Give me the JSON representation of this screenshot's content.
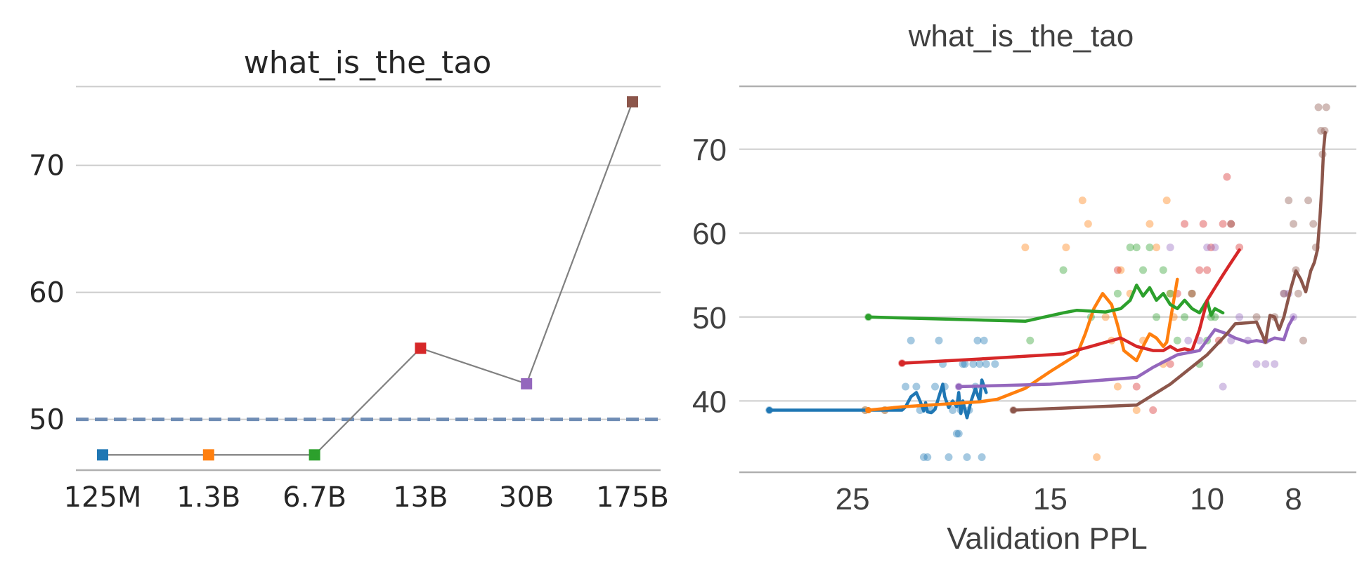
{
  "chart_data": [
    {
      "type": "line",
      "title": "what_is_the_tao",
      "xlabel": "",
      "ylabel": "",
      "categories": [
        "125M",
        "1.3B",
        "6.7B",
        "13B",
        "30B",
        "175B"
      ],
      "values": [
        47.2,
        47.2,
        47.2,
        55.6,
        52.8,
        75.0
      ],
      "marker_colors": [
        "#1f77b4",
        "#ff7f0e",
        "#2ca02c",
        "#d62728",
        "#9467bd",
        "#8c564b"
      ],
      "line_color": "#808080",
      "baseline": 50,
      "baseline_color": "#6f8db5",
      "yticks": [
        50,
        60,
        70
      ],
      "ylim": [
        46,
        76.5
      ],
      "grid": true
    },
    {
      "type": "line",
      "title": "what_is_the_tao",
      "xlabel": "Validation PPL",
      "ylabel": "",
      "x_scale": "log_reversed",
      "xticks": [
        25,
        15,
        10,
        8
      ],
      "xlim": [
        33.5,
        6.8
      ],
      "yticks": [
        40,
        50,
        60,
        70
      ],
      "ylim": [
        31.5,
        77.5
      ],
      "grid": true,
      "series": [
        {
          "color": "#1f77b4",
          "line": [
            [
              31.0,
              38.9
            ],
            [
              28.0,
              38.9
            ],
            [
              25.0,
              38.9
            ],
            [
              23.5,
              38.9
            ],
            [
              22.0,
              38.9
            ],
            [
              21.8,
              39.3
            ],
            [
              21.5,
              40.5
            ],
            [
              21.2,
              41.0
            ],
            [
              21.0,
              40.0
            ],
            [
              20.8,
              38.8
            ],
            [
              20.7,
              39.8
            ],
            [
              20.6,
              38.7
            ],
            [
              20.4,
              38.6
            ],
            [
              20.2,
              39.0
            ],
            [
              20.0,
              40.5
            ],
            [
              19.8,
              42.0
            ],
            [
              19.7,
              40.5
            ],
            [
              19.5,
              39.2
            ],
            [
              19.3,
              40.0
            ],
            [
              19.1,
              39.3
            ],
            [
              19.0,
              41.0
            ],
            [
              18.9,
              38.5
            ],
            [
              18.8,
              40.0
            ],
            [
              18.6,
              38.0
            ],
            [
              18.4,
              40.0
            ],
            [
              18.2,
              41.5
            ],
            [
              18.0,
              40.0
            ],
            [
              17.9,
              42.5
            ],
            [
              17.7,
              41.0
            ]
          ],
          "points": [
            [
              31.0,
              38.9
            ],
            [
              24.2,
              38.9
            ],
            [
              23.0,
              38.9
            ],
            [
              21.8,
              41.7
            ],
            [
              21.5,
              47.2
            ],
            [
              21.2,
              41.7
            ],
            [
              21.0,
              38.9
            ],
            [
              20.8,
              33.3
            ],
            [
              20.6,
              33.3
            ],
            [
              20.4,
              38.9
            ],
            [
              20.2,
              41.7
            ],
            [
              20.0,
              47.2
            ],
            [
              19.8,
              44.4
            ],
            [
              19.7,
              41.7
            ],
            [
              19.5,
              33.3
            ],
            [
              19.3,
              38.9
            ],
            [
              19.1,
              36.1
            ],
            [
              19.0,
              36.1
            ],
            [
              18.9,
              38.9
            ],
            [
              18.8,
              44.4
            ],
            [
              18.7,
              44.4
            ],
            [
              18.6,
              33.3
            ],
            [
              18.5,
              38.9
            ],
            [
              18.3,
              44.4
            ],
            [
              18.2,
              41.7
            ],
            [
              18.1,
              47.2
            ],
            [
              18.0,
              44.4
            ],
            [
              17.9,
              33.3
            ],
            [
              17.8,
              47.2
            ],
            [
              17.7,
              44.4
            ],
            [
              17.3,
              44.4
            ]
          ]
        },
        {
          "color": "#ff7f0e",
          "line": [
            [
              24.0,
              38.9
            ],
            [
              22.0,
              39.3
            ],
            [
              18.0,
              39.9
            ],
            [
              17.2,
              40.2
            ],
            [
              16.0,
              41.5
            ],
            [
              15.0,
              43.5
            ],
            [
              14.0,
              45.5
            ],
            [
              13.7,
              48.0
            ],
            [
              13.4,
              51.0
            ],
            [
              13.1,
              52.8
            ],
            [
              12.8,
              51.5
            ],
            [
              12.6,
              49.0
            ],
            [
              12.4,
              46.0
            ],
            [
              12.0,
              44.8
            ],
            [
              11.8,
              46.5
            ],
            [
              11.6,
              48.0
            ],
            [
              11.4,
              47.5
            ],
            [
              11.2,
              46.5
            ],
            [
              11.1,
              47.0
            ],
            [
              11.0,
              49.5
            ],
            [
              10.9,
              52.0
            ],
            [
              10.8,
              54.5
            ]
          ],
          "points": [
            [
              24.2,
              38.9
            ],
            [
              23.0,
              38.9
            ],
            [
              16.0,
              58.3
            ],
            [
              14.4,
              58.3
            ],
            [
              13.8,
              63.9
            ],
            [
              13.6,
              61.1
            ],
            [
              13.3,
              33.3
            ],
            [
              13.0,
              50.0
            ],
            [
              12.8,
              47.2
            ],
            [
              12.6,
              41.7
            ],
            [
              12.5,
              55.6
            ],
            [
              12.2,
              52.8
            ],
            [
              12.0,
              38.9
            ],
            [
              11.8,
              47.2
            ],
            [
              11.6,
              61.1
            ],
            [
              11.4,
              58.3
            ],
            [
              11.2,
              44.4
            ],
            [
              11.1,
              63.9
            ],
            [
              11.0,
              52.8
            ],
            [
              10.9,
              50.0
            ]
          ]
        },
        {
          "color": "#2ca02c",
          "line": [
            [
              24.0,
              50.0
            ],
            [
              16.0,
              49.5
            ],
            [
              14.5,
              50.5
            ],
            [
              14.0,
              50.8
            ],
            [
              13.0,
              50.6
            ],
            [
              12.5,
              51.0
            ],
            [
              12.2,
              52.0
            ],
            [
              12.0,
              53.8
            ],
            [
              11.8,
              52.5
            ],
            [
              11.6,
              53.5
            ],
            [
              11.4,
              52.0
            ],
            [
              11.2,
              52.8
            ],
            [
              11.0,
              51.5
            ],
            [
              10.8,
              51.0
            ],
            [
              10.6,
              52.0
            ],
            [
              10.4,
              51.0
            ],
            [
              10.2,
              50.5
            ],
            [
              10.0,
              52.0
            ],
            [
              9.9,
              50.2
            ],
            [
              9.8,
              51.0
            ],
            [
              9.6,
              50.5
            ]
          ],
          "points": [
            [
              24.0,
              50.0
            ],
            [
              15.8,
              47.2
            ],
            [
              14.5,
              55.6
            ],
            [
              13.5,
              50.0
            ],
            [
              12.6,
              52.8
            ],
            [
              12.2,
              58.3
            ],
            [
              12.0,
              58.3
            ],
            [
              11.8,
              55.6
            ],
            [
              11.6,
              58.3
            ],
            [
              11.4,
              50.0
            ],
            [
              11.2,
              55.6
            ],
            [
              11.0,
              52.8
            ],
            [
              10.8,
              47.2
            ],
            [
              10.6,
              50.0
            ],
            [
              10.4,
              52.8
            ],
            [
              10.2,
              44.4
            ],
            [
              10.0,
              47.2
            ],
            [
              9.9,
              50.0
            ],
            [
              9.8,
              50.0
            ]
          ]
        },
        {
          "color": "#d62728",
          "line": [
            [
              22.0,
              44.5
            ],
            [
              18.0,
              45.0
            ],
            [
              14.5,
              45.6
            ],
            [
              13.5,
              46.5
            ],
            [
              12.5,
              47.5
            ],
            [
              12.0,
              46.5
            ],
            [
              11.5,
              46.0
            ],
            [
              11.2,
              46.0
            ],
            [
              11.0,
              46.5
            ],
            [
              10.8,
              46.0
            ],
            [
              10.6,
              46.2
            ],
            [
              10.4,
              46.0
            ],
            [
              10.2,
              48.5
            ],
            [
              10.0,
              52.0
            ],
            [
              9.8,
              53.5
            ],
            [
              9.6,
              55.0
            ],
            [
              9.4,
              56.5
            ],
            [
              9.2,
              58.0
            ]
          ],
          "points": [
            [
              22.0,
              44.5
            ],
            [
              12.6,
              55.6
            ],
            [
              12.0,
              41.7
            ],
            [
              11.5,
              38.9
            ],
            [
              11.0,
              44.4
            ],
            [
              10.8,
              52.8
            ],
            [
              10.6,
              61.1
            ],
            [
              10.4,
              52.8
            ],
            [
              10.2,
              55.6
            ],
            [
              10.1,
              61.1
            ],
            [
              10.0,
              55.6
            ],
            [
              9.9,
              58.3
            ],
            [
              9.7,
              47.2
            ],
            [
              9.6,
              61.1
            ],
            [
              9.5,
              66.7
            ],
            [
              9.4,
              61.1
            ],
            [
              9.2,
              58.3
            ]
          ]
        },
        {
          "color": "#9467bd",
          "line": [
            [
              19.0,
              41.7
            ],
            [
              15.0,
              42.0
            ],
            [
              12.0,
              42.8
            ],
            [
              11.5,
              44.0
            ],
            [
              10.8,
              45.5
            ],
            [
              10.2,
              46.0
            ],
            [
              9.8,
              48.5
            ],
            [
              9.5,
              48.0
            ],
            [
              9.3,
              47.5
            ],
            [
              9.0,
              47.0
            ],
            [
              8.8,
              47.2
            ],
            [
              8.6,
              47.0
            ],
            [
              8.4,
              47.5
            ],
            [
              8.2,
              47.3
            ],
            [
              8.1,
              49.0
            ],
            [
              8.0,
              50.0
            ]
          ],
          "points": [
            [
              19.0,
              41.7
            ],
            [
              11.0,
              58.3
            ],
            [
              10.5,
              47.2
            ],
            [
              10.2,
              47.2
            ],
            [
              10.0,
              58.3
            ],
            [
              9.8,
              58.3
            ],
            [
              9.6,
              41.7
            ],
            [
              9.4,
              47.2
            ],
            [
              9.2,
              50.0
            ],
            [
              9.0,
              47.2
            ],
            [
              8.8,
              44.4
            ],
            [
              8.6,
              44.4
            ],
            [
              8.4,
              44.4
            ],
            [
              8.2,
              52.8
            ],
            [
              8.1,
              52.8
            ],
            [
              8.0,
              50.0
            ]
          ]
        },
        {
          "color": "#8c564b",
          "line": [
            [
              16.5,
              38.9
            ],
            [
              12.0,
              39.5
            ],
            [
              11.0,
              42.0
            ],
            [
              10.0,
              45.5
            ],
            [
              9.5,
              48.0
            ],
            [
              9.3,
              49.2
            ],
            [
              8.8,
              49.4
            ],
            [
              8.6,
              47.0
            ],
            [
              8.5,
              50.2
            ],
            [
              8.4,
              50.0
            ],
            [
              8.3,
              48.5
            ],
            [
              8.2,
              50.0
            ],
            [
              8.05,
              53.5
            ],
            [
              7.95,
              55.5
            ],
            [
              7.85,
              54.5
            ],
            [
              7.75,
              53.0
            ],
            [
              7.65,
              55.5
            ],
            [
              7.58,
              56.5
            ],
            [
              7.52,
              58.0
            ],
            [
              7.47,
              62.0
            ],
            [
              7.43,
              66.0
            ],
            [
              7.4,
              70.0
            ],
            [
              7.37,
              72.0
            ]
          ],
          "points": [
            [
              16.5,
              38.9
            ],
            [
              9.4,
              61.1
            ],
            [
              8.8,
              50.0
            ],
            [
              8.6,
              47.2
            ],
            [
              8.4,
              50.0
            ],
            [
              8.2,
              52.8
            ],
            [
              8.1,
              63.9
            ],
            [
              8.0,
              61.1
            ],
            [
              7.95,
              55.6
            ],
            [
              7.9,
              52.8
            ],
            [
              7.8,
              47.2
            ],
            [
              7.7,
              63.9
            ],
            [
              7.6,
              61.1
            ],
            [
              7.55,
              58.3
            ],
            [
              7.5,
              75.0
            ],
            [
              7.45,
              72.2
            ],
            [
              7.42,
              69.4
            ],
            [
              7.38,
              72.2
            ],
            [
              7.35,
              75.0
            ]
          ]
        }
      ]
    }
  ]
}
